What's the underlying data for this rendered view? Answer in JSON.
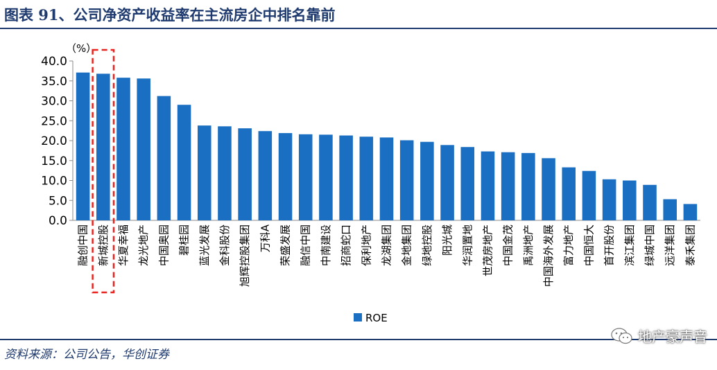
{
  "title": "图表 91、公司净资产收益率在主流房企中排名靠前",
  "source": "资料来源：公司公告，华创证券",
  "watermark": "地产豪声音",
  "chart_data": {
    "type": "bar",
    "unit_label": "（%）",
    "ylim": [
      0,
      40
    ],
    "yticks": [
      "0.0",
      "5.0",
      "10.0",
      "15.0",
      "20.0",
      "25.0",
      "30.0",
      "35.0",
      "40.0"
    ],
    "bar_color": "#1A6FC2",
    "highlight_color": "#E8231F",
    "highlight_category": "新城控股",
    "legend_position": "bottom",
    "series": [
      {
        "name": "ROE",
        "values": [
          37.1,
          36.8,
          35.8,
          35.6,
          31.2,
          29.0,
          23.8,
          23.6,
          23.1,
          22.4,
          21.9,
          21.6,
          21.5,
          21.3,
          21.0,
          20.8,
          20.1,
          19.7,
          18.9,
          18.4,
          17.3,
          17.1,
          16.9,
          15.6,
          13.3,
          12.4,
          10.3,
          10.0,
          8.9,
          5.3,
          4.1
        ]
      }
    ],
    "categories": [
      "融创中国",
      "新城控股",
      "华夏幸福",
      "龙光地产",
      "中国奥园",
      "碧桂园",
      "蓝光发展",
      "金科股份",
      "旭辉控股集团",
      "万科A",
      "荣盛发展",
      "融信中国",
      "中南建设",
      "招商蛇口",
      "保利地产",
      "龙湖集团",
      "金地集团",
      "绿地控股",
      "阳光城",
      "华润置地",
      "世茂房地产",
      "中国金茂",
      "禹洲地产",
      "中国海外发展",
      "富力地产",
      "中国恒大",
      "首开股份",
      "滨江集团",
      "绿城中国",
      "远洋集团",
      "泰禾集团"
    ]
  }
}
